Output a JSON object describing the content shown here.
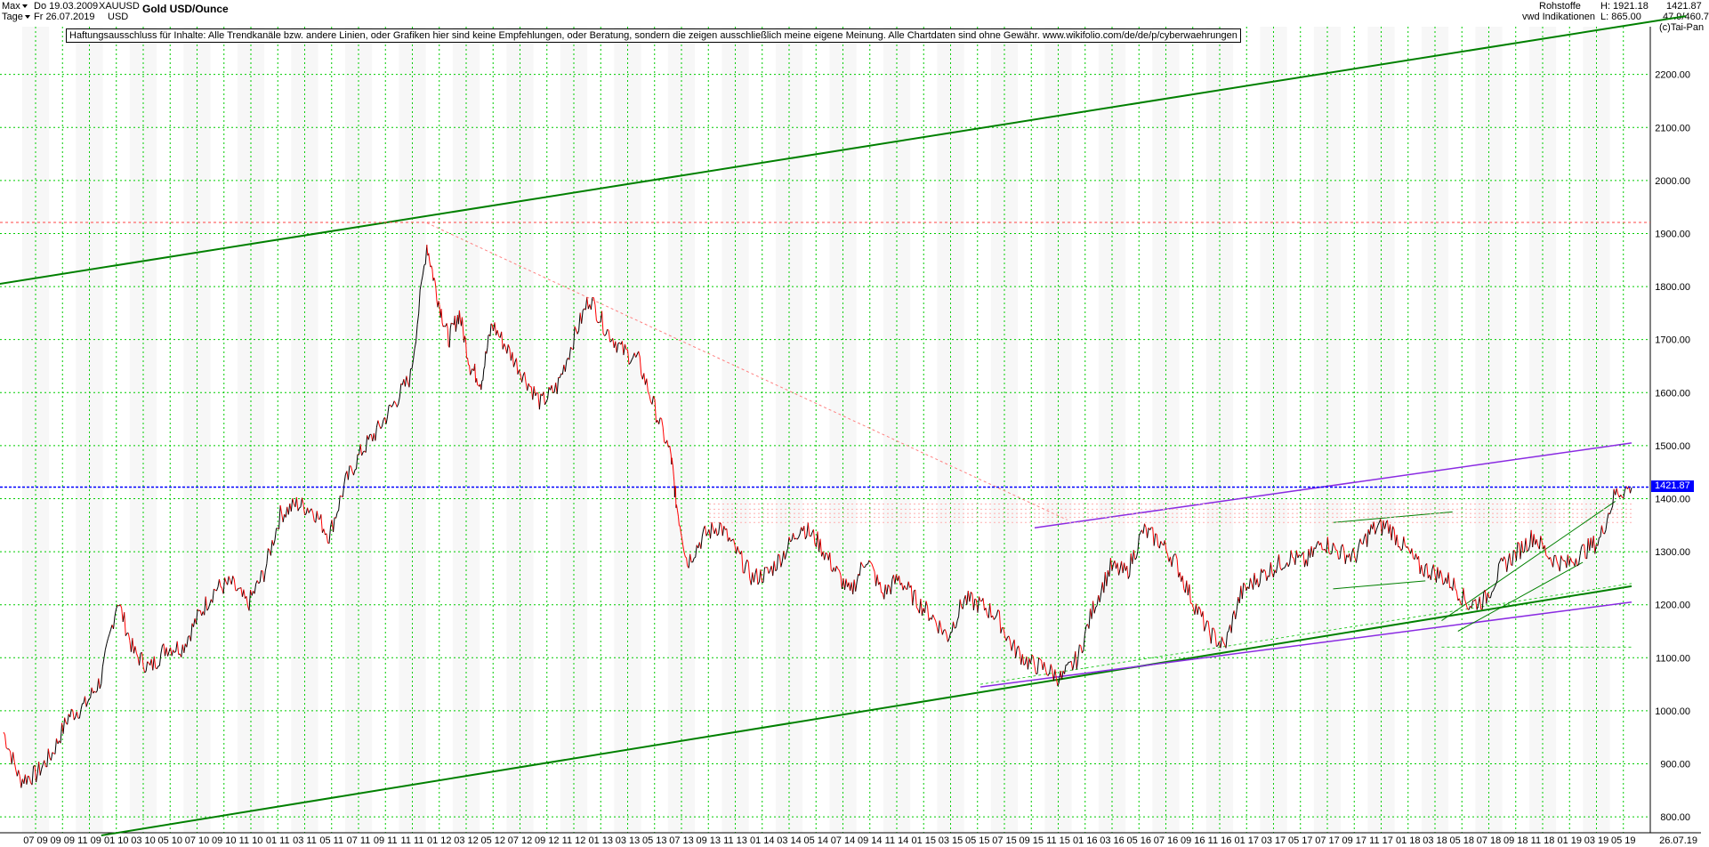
{
  "header": {
    "range_label": "Max",
    "period_label": "Tage",
    "date_from": "Do 19.03.2009",
    "date_to": "Fr 26.07.2019",
    "symbol": "XAUUSD",
    "currency": "USD",
    "title": "Gold USD/Ounce",
    "category": "Rohstoffe",
    "source": "vwd Indikationen",
    "high_label": "H: 1921.18",
    "low_label": "L: 865.00",
    "last_value": "1421.87",
    "ratio_label": "47.9/460.7",
    "copyright": "(c)Tai-Pan"
  },
  "disclaimer": "Haftungsausschluss für Inhalte: Alle Trendkanäle bzw. andere Linien, oder Grafiken hier sind keine Empfehlungen, oder Beratung, sondern die zeigen ausschließlich meine eigene Meinung. Alle Chartdaten sind ohne Gewähr.  www.wikifolio.com/de/de/p/cyberwaehrungen",
  "price_tag": "1421.87",
  "colors": {
    "price_up": "#000000",
    "price_down": "#ff0000",
    "grid": "#00cc00",
    "channel": "#008000",
    "purple": "#8a2be2",
    "current_line": "#0000ff",
    "resistance": "#ff4444"
  },
  "chart_data": {
    "type": "line",
    "title": "Gold USD/Ounce",
    "ylim": [
      770,
      2290
    ],
    "y_ticks": [
      "800.00",
      "900.00",
      "1000.00",
      "1100.00",
      "1200.00",
      "1300.00",
      "1400.00",
      "1500.00",
      "1600.00",
      "1700.00",
      "1800.00",
      "1900.00",
      "2000.00",
      "2100.00",
      "2200.00"
    ],
    "x_ticks": [
      "07 09",
      "09 09",
      "11 09",
      "01 10",
      "03 10",
      "05 10",
      "07 10",
      "09 10",
      "11 10",
      "01 11",
      "03 11",
      "05 11",
      "07 11",
      "09 11",
      "11 11",
      "01 12",
      "03 12",
      "05 12",
      "07 12",
      "09 12",
      "11 12",
      "01 13",
      "03 13",
      "05 13",
      "07 13",
      "09 13",
      "11 13",
      "01 14",
      "03 14",
      "05 14",
      "07 14",
      "09 14",
      "11 14",
      "01 15",
      "03 15",
      "05 15",
      "07 15",
      "09 15",
      "11 15",
      "01 16",
      "03 16",
      "05 16",
      "07 16",
      "09 16",
      "11 16",
      "01 17",
      "03 17",
      "05 17",
      "07 17",
      "09 17",
      "11 17",
      "01 18",
      "03 18",
      "05 18",
      "07 18",
      "09 18",
      "11 18",
      "01 19",
      "03 19",
      "05 19"
    ],
    "x_end_label": "26.07.19",
    "series": [
      {
        "values": [
          [
            0,
            960
          ],
          [
            3,
            870
          ],
          [
            6,
            880
          ],
          [
            9,
            920
          ],
          [
            12,
            990
          ],
          [
            15,
            1010
          ],
          [
            18,
            1060
          ],
          [
            21,
            1210
          ],
          [
            24,
            1110
          ],
          [
            27,
            1080
          ],
          [
            30,
            1120
          ],
          [
            33,
            1120
          ],
          [
            36,
            1180
          ],
          [
            39,
            1230
          ],
          [
            42,
            1240
          ],
          [
            45,
            1200
          ],
          [
            48,
            1260
          ],
          [
            51,
            1370
          ],
          [
            54,
            1390
          ],
          [
            57,
            1380
          ],
          [
            60,
            1330
          ],
          [
            63,
            1430
          ],
          [
            66,
            1490
          ],
          [
            69,
            1530
          ],
          [
            72,
            1580
          ],
          [
            75,
            1630
          ],
          [
            78,
            1880
          ],
          [
            80,
            1780
          ],
          [
            82,
            1700
          ],
          [
            84,
            1750
          ],
          [
            86,
            1650
          ],
          [
            88,
            1620
          ],
          [
            90,
            1730
          ],
          [
            93,
            1680
          ],
          [
            96,
            1630
          ],
          [
            99,
            1580
          ],
          [
            102,
            1610
          ],
          [
            105,
            1700
          ],
          [
            108,
            1780
          ],
          [
            111,
            1720
          ],
          [
            114,
            1680
          ],
          [
            117,
            1660
          ],
          [
            120,
            1570
          ],
          [
            123,
            1480
          ],
          [
            124,
            1390
          ],
          [
            126,
            1280
          ],
          [
            129,
            1330
          ],
          [
            132,
            1350
          ],
          [
            135,
            1300
          ],
          [
            138,
            1250
          ],
          [
            141,
            1260
          ],
          [
            144,
            1300
          ],
          [
            147,
            1350
          ],
          [
            150,
            1320
          ],
          [
            153,
            1270
          ],
          [
            156,
            1220
          ],
          [
            159,
            1290
          ],
          [
            162,
            1220
          ],
          [
            165,
            1250
          ],
          [
            168,
            1210
          ],
          [
            171,
            1180
          ],
          [
            174,
            1140
          ],
          [
            177,
            1210
          ],
          [
            180,
            1200
          ],
          [
            183,
            1180
          ],
          [
            186,
            1120
          ],
          [
            189,
            1090
          ],
          [
            192,
            1080
          ],
          [
            195,
            1060
          ],
          [
            198,
            1100
          ],
          [
            201,
            1200
          ],
          [
            204,
            1270
          ],
          [
            207,
            1260
          ],
          [
            210,
            1340
          ],
          [
            213,
            1320
          ],
          [
            216,
            1280
          ],
          [
            219,
            1210
          ],
          [
            222,
            1150
          ],
          [
            225,
            1120
          ],
          [
            228,
            1220
          ],
          [
            231,
            1250
          ],
          [
            234,
            1270
          ],
          [
            237,
            1290
          ],
          [
            240,
            1280
          ],
          [
            243,
            1320
          ],
          [
            246,
            1300
          ],
          [
            249,
            1290
          ],
          [
            252,
            1340
          ],
          [
            255,
            1350
          ],
          [
            258,
            1310
          ],
          [
            261,
            1270
          ],
          [
            264,
            1260
          ],
          [
            267,
            1240
          ],
          [
            270,
            1200
          ],
          [
            273,
            1210
          ],
          [
            276,
            1270
          ],
          [
            279,
            1300
          ],
          [
            282,
            1330
          ],
          [
            285,
            1290
          ],
          [
            288,
            1275
          ],
          [
            291,
            1300
          ],
          [
            294,
            1320
          ],
          [
            297,
            1410
          ],
          [
            300,
            1421
          ]
        ]
      }
    ],
    "series_x_range": [
      0,
      300
    ],
    "overlays": [
      {
        "kind": "channel-upper",
        "color": "#008000",
        "from": [
          -10,
          1790
        ],
        "to": [
          310,
          2310
        ]
      },
      {
        "kind": "channel-lower",
        "color": "#008000",
        "from": [
          18,
          765
        ],
        "to": [
          300,
          1235
        ]
      },
      {
        "kind": "resistance",
        "color": "#ff4444",
        "value": 1921
      }
    ]
  }
}
